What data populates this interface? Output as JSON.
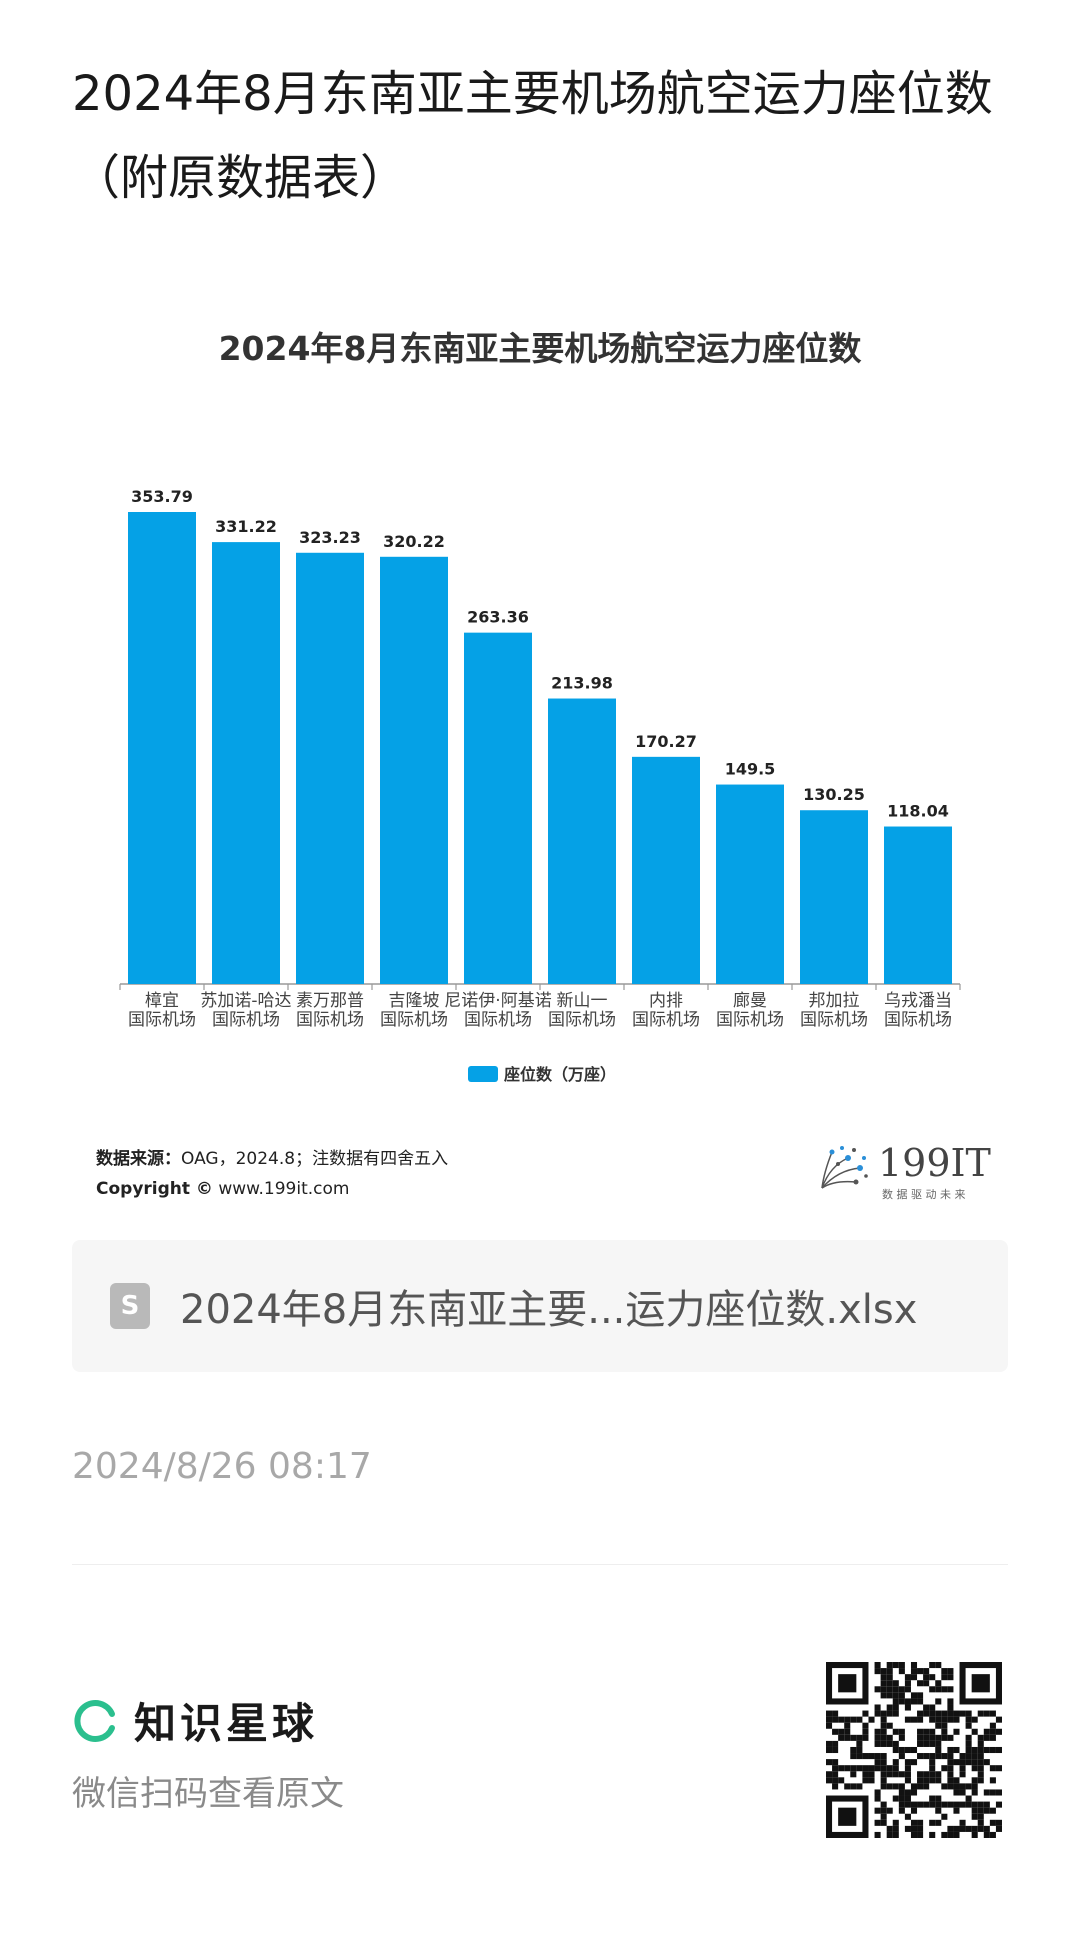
{
  "page": {
    "title": "2024年8月东南亚主要机场航空运力座位数（附原数据表）"
  },
  "chart_data": {
    "type": "bar",
    "title": "2024年8月东南亚主要机场航空运力座位数",
    "categories": [
      [
        "樟宜",
        "国际机场"
      ],
      [
        "苏加诺-哈达",
        "国际机场"
      ],
      [
        "素万那普",
        "国际机场"
      ],
      [
        "吉隆坡",
        "国际机场"
      ],
      [
        "尼诺伊·阿基诺",
        "国际机场"
      ],
      [
        "新山一",
        "国际机场"
      ],
      [
        "内排",
        "国际机场"
      ],
      [
        "廊曼",
        "国际机场"
      ],
      [
        "邦加拉",
        "国际机场"
      ],
      [
        "乌戎潘当",
        "国际机场"
      ]
    ],
    "series": [
      {
        "name": "座位数（万座）",
        "values": [
          353.79,
          331.22,
          323.23,
          320.22,
          263.36,
          213.98,
          170.27,
          149.5,
          130.25,
          118.04
        ],
        "color": "#05A1E6"
      }
    ],
    "value_labels": [
      "353.79",
      "331.22",
      "323.23",
      "320.22",
      "263.36",
      "213.98",
      "170.27",
      "149.5",
      "130.25",
      "118.04"
    ],
    "ylim": [
      0,
      353.79
    ],
    "grid": false,
    "legend": "bottom-center"
  },
  "source": {
    "label": "数据来源：",
    "text": "OAG，2024.8；注数据有四舍五入",
    "copyright_label": "Copyright ©",
    "copyright_site": "www.199it.com"
  },
  "logo": {
    "brand": "199IT",
    "slogan": "数 据 驱 动 未 来",
    "icon": "dandelion-logo-icon"
  },
  "attachment": {
    "icon": "spreadsheet-file-icon",
    "icon_letter": "S",
    "file_name": "2024年8月东南亚主要...运力座位数.xlsx"
  },
  "meta": {
    "timestamp": "2024/8/26 08:17"
  },
  "footer": {
    "app_name": "知识星球",
    "scan_text": "微信扫码查看原文",
    "logo_color": "#2bbf8e",
    "qr_icon": "qr-code-icon"
  }
}
